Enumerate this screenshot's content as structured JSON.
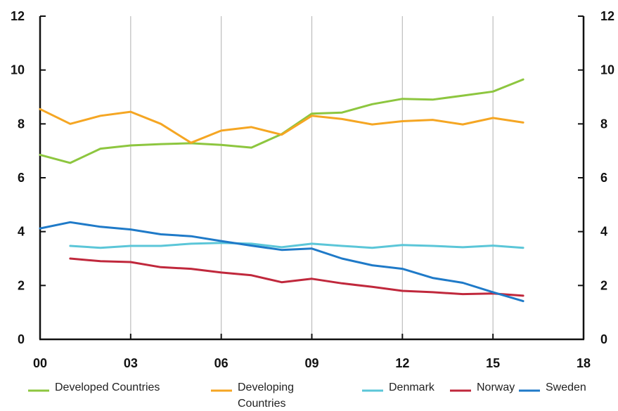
{
  "chart_data": {
    "type": "line",
    "title": "",
    "xlabel": "",
    "ylabel": "",
    "x_ticks": [
      "00",
      "03",
      "06",
      "09",
      "12",
      "15",
      "18"
    ],
    "y_ticks": [
      "0",
      "2",
      "4",
      "6",
      "8",
      "10",
      "12"
    ],
    "xlim": [
      2000,
      2018
    ],
    "ylim": [
      0,
      12
    ],
    "grid": "vertical",
    "legend_position": "bottom",
    "series": [
      {
        "name": "Developed Countries",
        "color": "#8dc63f",
        "x": [
          2000,
          2001,
          2002,
          2003,
          2004,
          2005,
          2006,
          2007,
          2008,
          2009,
          2010,
          2011,
          2012,
          2013,
          2014,
          2015,
          2016
        ],
        "values": [
          6.85,
          6.55,
          7.08,
          7.2,
          7.25,
          7.28,
          7.22,
          7.12,
          7.62,
          8.38,
          8.42,
          8.73,
          8.93,
          8.9,
          9.05,
          9.2,
          9.65
        ]
      },
      {
        "name": "Developing Countries",
        "color": "#f5a623",
        "x": [
          2000,
          2001,
          2002,
          2003,
          2004,
          2005,
          2006,
          2007,
          2008,
          2009,
          2010,
          2011,
          2012,
          2013,
          2014,
          2015,
          2016
        ],
        "values": [
          8.55,
          8.0,
          8.3,
          8.45,
          8.0,
          7.3,
          7.75,
          7.88,
          7.6,
          8.3,
          8.18,
          7.98,
          8.1,
          8.15,
          7.98,
          8.22,
          8.05
        ]
      },
      {
        "name": "Denmark",
        "color": "#5bc6d8",
        "x": [
          2001,
          2002,
          2003,
          2004,
          2005,
          2006,
          2007,
          2008,
          2009,
          2010,
          2011,
          2012,
          2013,
          2014,
          2015,
          2016
        ],
        "values": [
          3.47,
          3.4,
          3.47,
          3.47,
          3.55,
          3.58,
          3.55,
          3.42,
          3.55,
          3.47,
          3.4,
          3.5,
          3.47,
          3.42,
          3.48,
          3.4
        ]
      },
      {
        "name": "Norway",
        "color": "#c0283c",
        "x": [
          2001,
          2002,
          2003,
          2004,
          2005,
          2006,
          2007,
          2008,
          2009,
          2010,
          2011,
          2012,
          2013,
          2014,
          2015,
          2016
        ],
        "values": [
          3.0,
          2.9,
          2.87,
          2.68,
          2.62,
          2.48,
          2.38,
          2.12,
          2.25,
          2.08,
          1.95,
          1.8,
          1.75,
          1.68,
          1.7,
          1.62
        ]
      },
      {
        "name": "Sweden",
        "color": "#1f7ac8",
        "x": [
          2000,
          2001,
          2002,
          2003,
          2004,
          2005,
          2006,
          2007,
          2008,
          2009,
          2010,
          2011,
          2012,
          2013,
          2014,
          2015,
          2016
        ],
        "values": [
          4.12,
          4.35,
          4.18,
          4.08,
          3.9,
          3.83,
          3.65,
          3.48,
          3.32,
          3.37,
          3.0,
          2.75,
          2.62,
          2.28,
          2.1,
          1.75,
          1.42
        ]
      }
    ],
    "legend": [
      {
        "label": "Developed Countries",
        "color": "#8dc63f"
      },
      {
        "label": "Developing\nCountries",
        "color": "#f5a623"
      },
      {
        "label": "Denmark",
        "color": "#5bc6d8"
      },
      {
        "label": "Norway",
        "color": "#c0283c"
      },
      {
        "label": "Sweden",
        "color": "#1f7ac8"
      }
    ]
  }
}
